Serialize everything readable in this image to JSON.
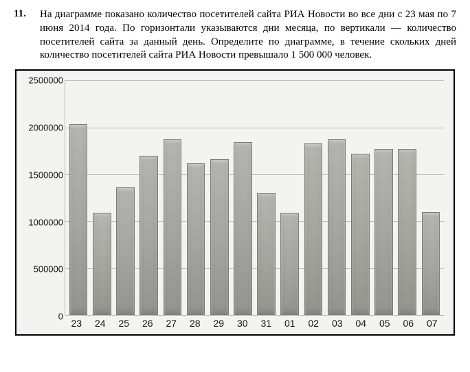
{
  "problem": {
    "number": "11.",
    "text": "На диаграмме показано количество посетителей сайта РИА Новости во все дни с 23 мая по 7 июня 2014 года. По горизонтали указываются дни месяца, по вертикали — количество посетителей сайта за данный день. Определите по диаграмме, в течение скольких дней количество посетителей сайта РИА Новости превышало 1 500 000 человек."
  },
  "chart": {
    "type": "bar",
    "ylim": [
      0,
      2500000
    ],
    "ytick_step": 500000,
    "y_ticks": [
      0,
      500000,
      1000000,
      1500000,
      2000000,
      2500000
    ],
    "y_tick_labels": [
      "0",
      "500000",
      "1000000",
      "1500000",
      "2000000",
      "2500000"
    ],
    "categories": [
      "23",
      "24",
      "25",
      "26",
      "27",
      "28",
      "29",
      "30",
      "31",
      "01",
      "02",
      "03",
      "04",
      "05",
      "06",
      "07"
    ],
    "values": [
      2030000,
      1090000,
      1360000,
      1700000,
      1870000,
      1620000,
      1660000,
      1840000,
      1300000,
      1090000,
      1830000,
      1870000,
      1720000,
      1770000,
      1770000,
      1100000
    ],
    "bar_color": "#a5a59f",
    "bar_border": "#7a7a75",
    "grid_color": "#bababa",
    "background_color": "#f3f3f2",
    "label_fontsize": 13,
    "bar_width": 0.78,
    "title_fontsize": 0
  }
}
